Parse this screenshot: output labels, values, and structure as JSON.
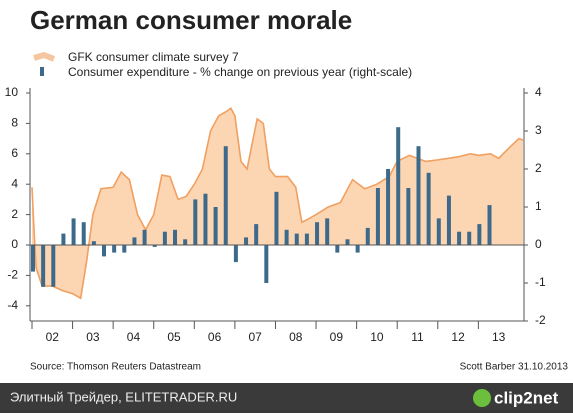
{
  "chart_data": {
    "type": "area_bar",
    "title": "German consumer morale",
    "source": "Source: Thomson Reuters Datastream",
    "credit": "Scott Barber 31.10.2013",
    "xlim": [
      2002,
      2014.1
    ],
    "xticks": [
      {
        "value": 2002.5,
        "label": "02"
      },
      {
        "value": 2003.5,
        "label": "03"
      },
      {
        "value": 2004.5,
        "label": "04"
      },
      {
        "value": 2005.5,
        "label": "05"
      },
      {
        "value": 2006.5,
        "label": "06"
      },
      {
        "value": 2007.5,
        "label": "07"
      },
      {
        "value": 2008.5,
        "label": "08"
      },
      {
        "value": 2009.5,
        "label": "09"
      },
      {
        "value": 2010.5,
        "label": "10"
      },
      {
        "value": 2011.5,
        "label": "11"
      },
      {
        "value": 2012.5,
        "label": "12"
      },
      {
        "value": 2013.5,
        "label": "13"
      }
    ],
    "ylim": [
      -5,
      10
    ],
    "yticks": [
      -4,
      -2,
      0,
      2,
      4,
      6,
      8,
      10
    ],
    "y2lim": [
      -2,
      4
    ],
    "y2ticks": [
      -2,
      -1,
      0,
      1,
      2,
      3,
      4
    ],
    "series": [
      {
        "name": "GFK consumer climate survey 7",
        "color": "#f0a060",
        "fill": "#fcd5b2",
        "x": [
          2002.0,
          2002.05,
          2002.1,
          2002.25,
          2002.5,
          2002.75,
          2003.0,
          2003.2,
          2003.35,
          2003.5,
          2003.7,
          2004.0,
          2004.2,
          2004.4,
          2004.6,
          2004.8,
          2005.0,
          2005.2,
          2005.4,
          2005.6,
          2005.8,
          2006.0,
          2006.2,
          2006.4,
          2006.6,
          2006.8,
          2006.9,
          2007.0,
          2007.15,
          2007.3,
          2007.45,
          2007.55,
          2007.7,
          2007.85,
          2008.0,
          2008.3,
          2008.5,
          2008.65,
          2008.8,
          2009.0,
          2009.3,
          2009.6,
          2009.9,
          2010.2,
          2010.5,
          2010.8,
          2011.0,
          2011.3,
          2011.5,
          2011.7,
          2012.0,
          2012.5,
          2012.8,
          2013.0,
          2013.3,
          2013.5,
          2013.8,
          2014.0,
          2014.1
        ],
        "values": [
          3.8,
          1.0,
          -1.5,
          -2.7,
          -2.7,
          -3.0,
          -3.2,
          -3.5,
          -1.0,
          2.0,
          3.7,
          3.8,
          4.8,
          4.3,
          2.0,
          1.0,
          2.0,
          4.6,
          4.5,
          3.0,
          3.2,
          4.0,
          5.0,
          7.5,
          8.5,
          8.8,
          9.0,
          8.5,
          5.5,
          5.0,
          7.0,
          8.3,
          8.0,
          5.0,
          4.5,
          4.5,
          3.8,
          1.5,
          1.7,
          2.0,
          2.5,
          2.8,
          4.3,
          3.7,
          4.0,
          4.5,
          5.5,
          5.9,
          5.7,
          5.5,
          5.6,
          5.8,
          6.0,
          5.9,
          6.0,
          5.7,
          6.5,
          7.0,
          6.9
        ]
      },
      {
        "name": "Consumer expenditure - % change on previous year (right-scale)",
        "color": "#3d6a8a",
        "axis": "y2",
        "x": [
          2002.0,
          2002.25,
          2002.5,
          2002.75,
          2003.0,
          2003.25,
          2003.5,
          2003.75,
          2004.0,
          2004.25,
          2004.5,
          2004.75,
          2005.0,
          2005.25,
          2005.5,
          2005.75,
          2006.0,
          2006.25,
          2006.5,
          2006.75,
          2007.0,
          2007.25,
          2007.5,
          2007.75,
          2008.0,
          2008.25,
          2008.5,
          2008.75,
          2009.0,
          2009.25,
          2009.5,
          2009.75,
          2010.0,
          2010.25,
          2010.5,
          2010.75,
          2011.0,
          2011.25,
          2011.5,
          2011.75,
          2012.0,
          2012.25,
          2012.5,
          2012.75,
          2013.0,
          2013.25
        ],
        "values": [
          -0.7,
          -1.1,
          -1.1,
          0.3,
          0.7,
          0.6,
          0.1,
          -0.3,
          -0.2,
          -0.2,
          0.2,
          0.4,
          -0.05,
          0.35,
          0.4,
          0.15,
          1.2,
          1.35,
          1.0,
          2.6,
          -0.45,
          0.2,
          0.55,
          -1.0,
          1.4,
          0.4,
          0.3,
          0.3,
          0.6,
          0.7,
          -0.2,
          0.15,
          -0.2,
          0.45,
          1.5,
          2.0,
          3.1,
          1.5,
          2.6,
          1.9,
          0.7,
          1.3,
          0.35,
          0.35,
          0.55,
          1.05
        ]
      }
    ]
  },
  "footer": {
    "left": "Элитный Трейдер, ELITETRADER.RU",
    "logo": "clip2net"
  }
}
